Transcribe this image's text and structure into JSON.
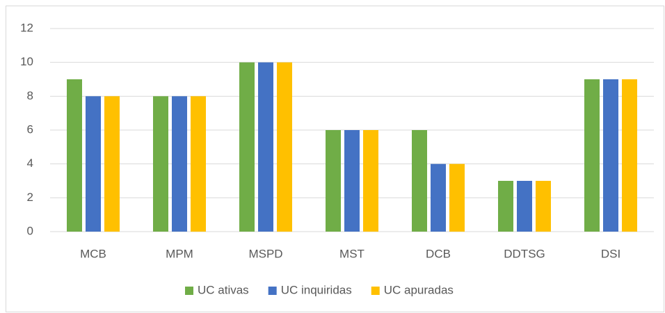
{
  "chart_data": {
    "type": "bar",
    "categories": [
      "MCB",
      "MPM",
      "MSPD",
      "MST",
      "DCB",
      "DDTSG",
      "DSI"
    ],
    "series": [
      {
        "name": "UC ativas",
        "color": "#70ad47",
        "values": [
          9,
          8,
          10,
          6,
          6,
          3,
          9
        ]
      },
      {
        "name": "UC inquiridas",
        "color": "#4472c4",
        "values": [
          8,
          8,
          10,
          6,
          4,
          3,
          9
        ]
      },
      {
        "name": "UC apuradas",
        "color": "#ffc000",
        "values": [
          8,
          8,
          10,
          6,
          4,
          3,
          9
        ]
      }
    ],
    "ylim": [
      0,
      12
    ],
    "yticks": [
      0,
      2,
      4,
      6,
      8,
      10,
      12
    ],
    "grid": true,
    "legend": "bottom"
  }
}
